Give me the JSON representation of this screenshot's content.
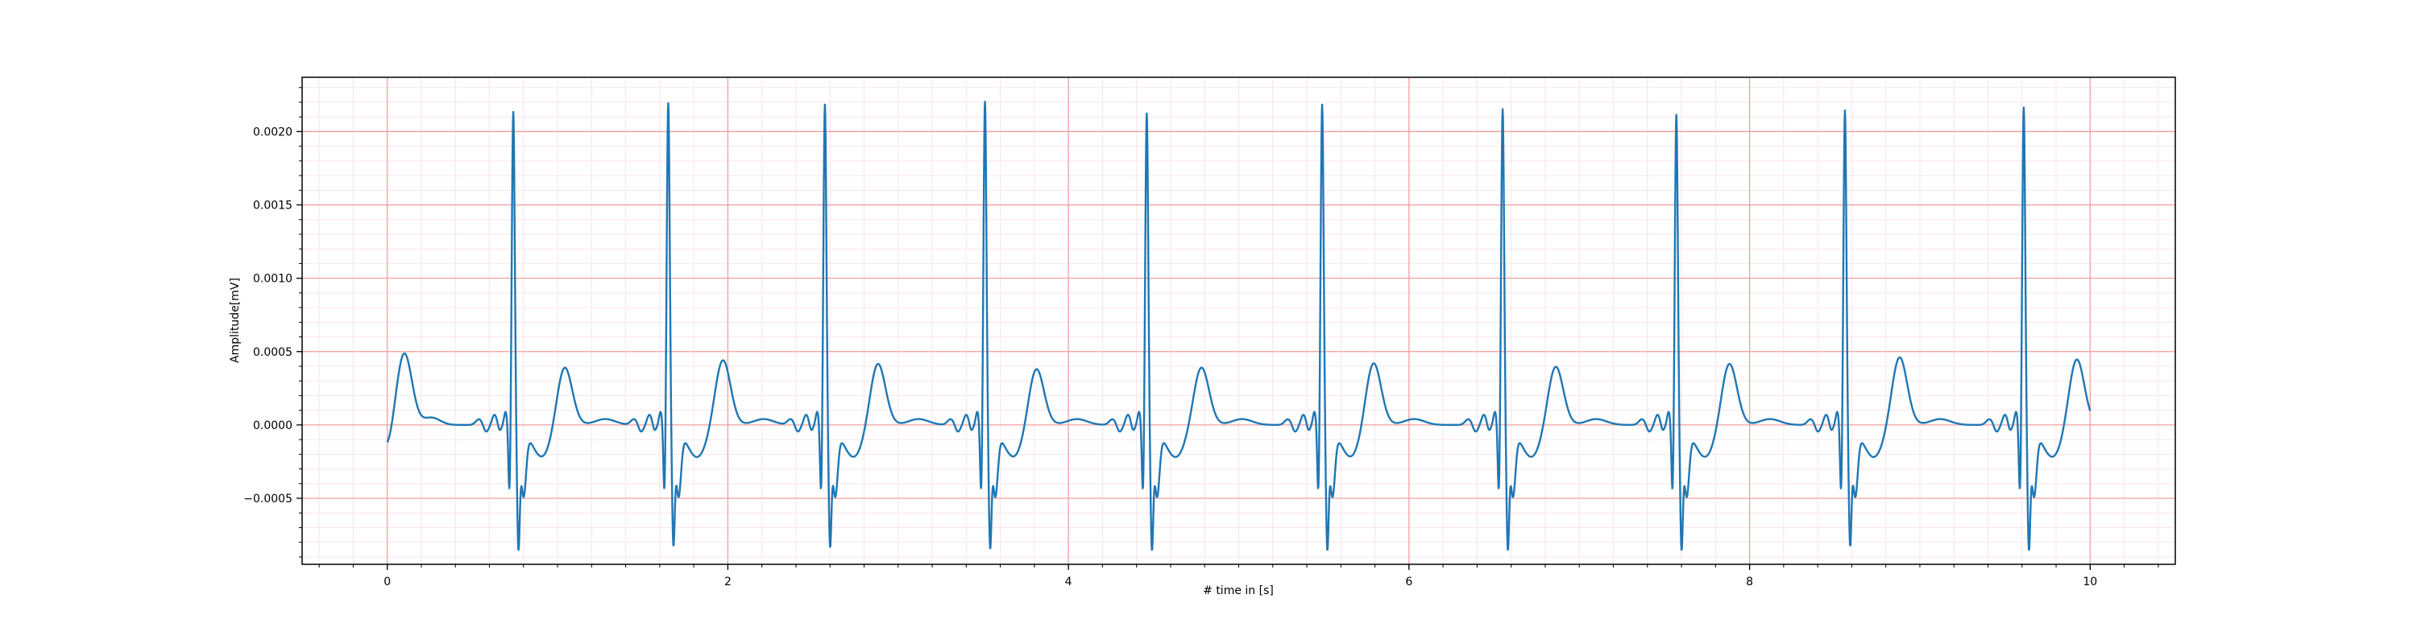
{
  "chart_data": {
    "type": "line",
    "title": "",
    "xlabel": "# time in [s]",
    "ylabel": "Amplitude[mV]",
    "xlim": [
      -0.5,
      10.5
    ],
    "ylim": [
      -0.00095,
      0.00237
    ],
    "x_ticks": [
      0,
      2,
      4,
      6,
      8,
      10
    ],
    "x_tick_labels": [
      "0",
      "2",
      "4",
      "6",
      "8",
      "10"
    ],
    "y_ticks": [
      -0.0005,
      0.0,
      0.0005,
      0.001,
      0.0015,
      0.002
    ],
    "y_tick_labels": [
      "−0.0005",
      "0.0000",
      "0.0005",
      "0.0010",
      "0.0015",
      "0.0020"
    ],
    "grid": {
      "major": true,
      "minor": true,
      "major_x_step": 2,
      "major_y_step": 0.0005,
      "minor_x_step": 0.2,
      "minor_y_step": 0.0001
    },
    "colors": {
      "line": "#1f77b4",
      "major_grid": "#f0a0a0",
      "minor_grid": "#fbe3ea"
    },
    "sampling_rate_hz": 100,
    "series": [
      {
        "name": "",
        "beats": [
          {
            "r_time": 0.74,
            "r_amp": 0.00214,
            "q_amp": -0.0005,
            "s_amp": -0.00078,
            "t_amp": 0.00041,
            "t_time": 1.04
          },
          {
            "r_time": 1.65,
            "r_amp": 0.0022,
            "q_amp": -0.0005,
            "s_amp": -0.00075,
            "t_amp": 0.00045,
            "t_time": 1.97
          },
          {
            "r_time": 2.57,
            "r_amp": 0.00219,
            "q_amp": -0.0005,
            "s_amp": -0.00076,
            "t_amp": 0.00043,
            "t_time": 2.88
          },
          {
            "r_time": 3.51,
            "r_amp": 0.00221,
            "q_amp": -0.0005,
            "s_amp": -0.00077,
            "t_amp": 0.0004,
            "t_time": 3.81
          },
          {
            "r_time": 4.46,
            "r_amp": 0.00213,
            "q_amp": -0.0005,
            "s_amp": -0.00078,
            "t_amp": 0.0004,
            "t_time": 4.78
          },
          {
            "r_time": 5.49,
            "r_amp": 0.00219,
            "q_amp": -0.0005,
            "s_amp": -0.00078,
            "t_amp": 0.00044,
            "t_time": 5.79
          },
          {
            "r_time": 6.55,
            "r_amp": 0.00216,
            "q_amp": -0.0005,
            "s_amp": -0.00078,
            "t_amp": 0.00041,
            "t_time": 6.86
          },
          {
            "r_time": 7.57,
            "r_amp": 0.00212,
            "q_amp": -0.0005,
            "s_amp": -0.00078,
            "t_amp": 0.00043,
            "t_time": 7.88
          },
          {
            "r_time": 8.56,
            "r_amp": 0.00215,
            "q_amp": -0.0005,
            "s_amp": -0.00075,
            "t_amp": 0.00047,
            "t_time": 8.88
          },
          {
            "r_time": 9.61,
            "r_amp": 0.00217,
            "q_amp": -0.0005,
            "s_amp": -0.00078,
            "t_amp": 0.00046,
            "t_time": 9.92
          }
        ],
        "start": {
          "x": 0.0,
          "y": -0.00016
        },
        "first_t_wave": {
          "t_time": 0.1,
          "t_amp": 0.00049
        },
        "end": {
          "x": 10.0,
          "y": 0.0
        }
      }
    ]
  }
}
